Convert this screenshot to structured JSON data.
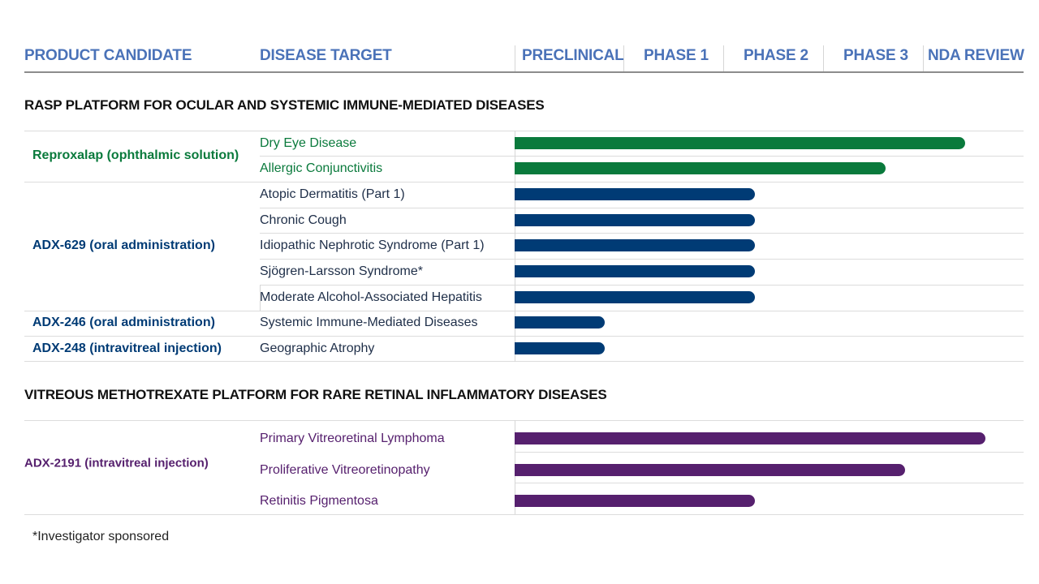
{
  "colors": {
    "header_text": "#4a72b8",
    "green": "#0a7a3c",
    "navy": "#003b75",
    "purple": "#56206e"
  },
  "headers": {
    "product": "PRODUCT CANDIDATE",
    "disease": "DISEASE TARGET",
    "stages": [
      "PRECLINICAL",
      "PHASE 1",
      "PHASE 2",
      "PHASE 3",
      "NDA REVIEW"
    ]
  },
  "sections": [
    {
      "title": "RASP PLATFORM FOR OCULAR AND SYSTEMIC  IMMUNE-MEDIATED  DISEASES",
      "candidates": [
        {
          "name": "Reproxalap (ophthalmic solution)",
          "color": "green"
        },
        {
          "name": "ADX-629 (oral administration)",
          "color": "navy"
        },
        {
          "name": "ADX-246 (oral administration)",
          "color": "navy"
        },
        {
          "name": "ADX-248 (intravitreal injection)",
          "color": "navy"
        }
      ]
    },
    {
      "title": "VITREOUS METHOTREXATE PLATFORM FOR RARE RETINAL INFLAMMATORY DISEASES",
      "candidates": [
        {
          "name": "ADX-2191 (intravitreal  injection)",
          "color": "purple"
        }
      ]
    }
  ],
  "chart_data": {
    "type": "bar",
    "orientation": "horizontal",
    "x_scale": {
      "stages": [
        "PRECLINICAL",
        "PHASE 1",
        "PHASE 2",
        "PHASE 3",
        "NDA REVIEW"
      ],
      "range": [
        0,
        5
      ]
    },
    "rows": [
      {
        "section": 0,
        "candidate": 0,
        "target": "Dry Eye Disease",
        "progress": 4.5
      },
      {
        "section": 0,
        "candidate": 0,
        "target": "Allergic Conjunctivitis",
        "progress": 3.7
      },
      {
        "section": 0,
        "candidate": 1,
        "target": "Atopic Dermatitis (Part 1)",
        "progress": 2.4
      },
      {
        "section": 0,
        "candidate": 1,
        "target": "Chronic Cough",
        "progress": 2.4
      },
      {
        "section": 0,
        "candidate": 1,
        "target": "Idiopathic Nephrotic Syndrome (Part 1)",
        "progress": 2.4
      },
      {
        "section": 0,
        "candidate": 1,
        "target": "Sjögren-Larsson Syndrome*",
        "progress": 2.4
      },
      {
        "section": 0,
        "candidate": 1,
        "target": "Moderate Alcohol-Associated Hepatitis",
        "progress": 2.4
      },
      {
        "section": 0,
        "candidate": 2,
        "target": "Systemic Immune-Mediated Diseases",
        "progress": 0.9
      },
      {
        "section": 0,
        "candidate": 3,
        "target": "Geographic Atrophy",
        "progress": 0.9
      },
      {
        "section": 1,
        "candidate": 0,
        "target": "Primary Vitreoretinal Lymphoma",
        "progress": 4.7
      },
      {
        "section": 1,
        "candidate": 0,
        "target": "Proliferative Vitreoretinopathy",
        "progress": 3.9
      },
      {
        "section": 1,
        "candidate": 0,
        "target": "Retinitis Pigmentosa",
        "progress": 2.4
      }
    ]
  },
  "footnote": "*Investigator sponsored"
}
